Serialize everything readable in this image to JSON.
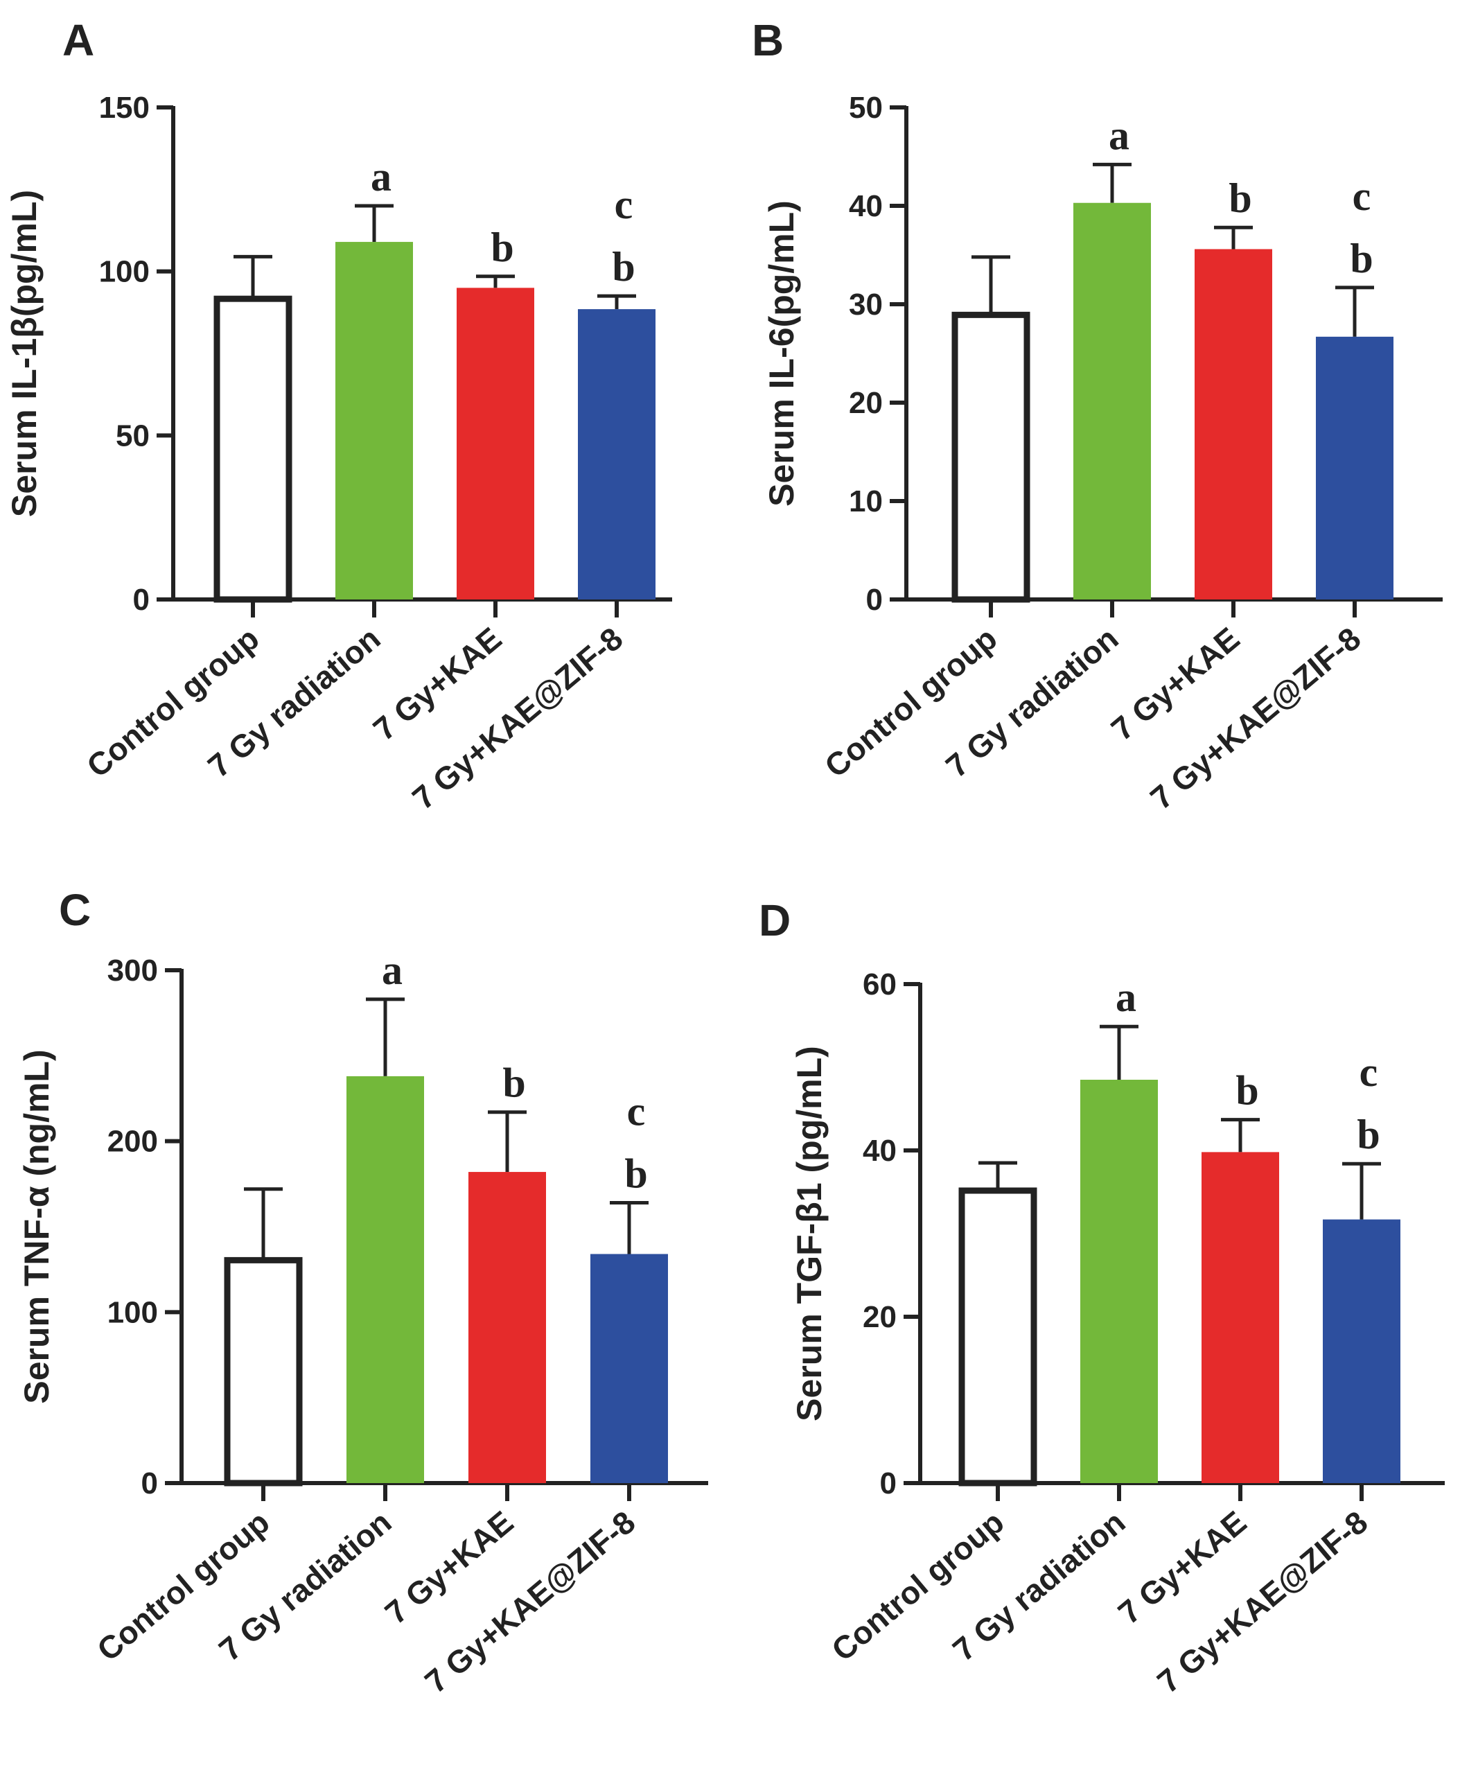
{
  "figure": {
    "colors": {
      "control_fill": "#ffffff",
      "control_stroke": "#222222",
      "radiation": "#73b83a",
      "kae": "#e52b2b",
      "kae_zif8": "#2d4f9e",
      "axis": "#222222"
    }
  },
  "chart_data": [
    {
      "panel": "A",
      "type": "bar",
      "title": "",
      "xlabel": "",
      "ylabel": "Serum IL-1β(pg/mL)",
      "ylim": [
        0,
        150
      ],
      "yticks": [
        0,
        50,
        100,
        150
      ],
      "grid": false,
      "categories": [
        "Control group",
        "7 Gy radiation",
        "7 Gy+KAE",
        "7 Gy+KAE@ZIF-8"
      ],
      "values": [
        92.5,
        109,
        95,
        88.5
      ],
      "errors": [
        12,
        11,
        3.5,
        4
      ],
      "annotations": [
        [],
        [
          "a"
        ],
        [
          "b"
        ],
        [
          "c",
          "b"
        ]
      ]
    },
    {
      "panel": "B",
      "type": "bar",
      "title": "",
      "xlabel": "",
      "ylabel": "Serum IL-6(pg/mL)",
      "ylim": [
        0,
        50
      ],
      "yticks": [
        0,
        10,
        20,
        30,
        40,
        50
      ],
      "grid": false,
      "categories": [
        "Control group",
        "7 Gy radiation",
        "7 Gy+KAE",
        "7 Gy+KAE@ZIF-8"
      ],
      "values": [
        29.2,
        40.3,
        35.6,
        26.7
      ],
      "errors": [
        5.6,
        3.9,
        2.2,
        5
      ],
      "annotations": [
        [],
        [
          "a"
        ],
        [
          "b"
        ],
        [
          "c",
          "b"
        ]
      ]
    },
    {
      "panel": "C",
      "type": "bar",
      "title": "",
      "xlabel": "",
      "ylabel": "Serum TNF-α (ng/mL)",
      "ylim": [
        0,
        300
      ],
      "yticks": [
        0,
        100,
        200,
        300
      ],
      "grid": false,
      "categories": [
        "Control group",
        "7 Gy radiation",
        "7 Gy+KAE",
        "7 Gy+KAE@ZIF-8"
      ],
      "values": [
        132,
        238,
        182,
        134
      ],
      "errors": [
        40,
        45,
        35,
        30
      ],
      "annotations": [
        [],
        [
          "a"
        ],
        [
          "b"
        ],
        [
          "c",
          "b"
        ]
      ]
    },
    {
      "panel": "D",
      "type": "bar",
      "title": "",
      "xlabel": "",
      "ylabel": "Serum TGF-β1 (pg/mL)",
      "ylim": [
        0,
        60
      ],
      "yticks": [
        0,
        20,
        40,
        60
      ],
      "grid": false,
      "categories": [
        "Control group",
        "7 Gy radiation",
        "7 Gy+KAE",
        "7 Gy+KAE@ZIF-8"
      ],
      "values": [
        35.5,
        48.5,
        39.8,
        31.7
      ],
      "errors": [
        3,
        6.4,
        3.9,
        6.7
      ],
      "annotations": [
        [],
        [
          "a"
        ],
        [
          "b"
        ],
        [
          "c",
          "b"
        ]
      ]
    }
  ]
}
